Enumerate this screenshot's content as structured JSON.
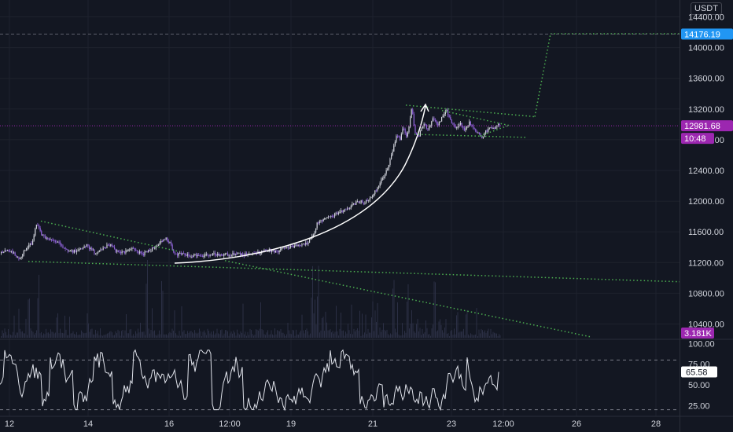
{
  "currency": "USDT",
  "chart_data": [
    {
      "type": "candlestick",
      "title": "",
      "x_ticks": [
        "12",
        "14",
        "16",
        "12:00",
        "19",
        "21",
        "23",
        "12:00",
        "26",
        "28"
      ],
      "y_ticks": [
        "10400.00",
        "10800.00",
        "11200.00",
        "11600.00",
        "12000.00",
        "12400.00",
        "12800.00",
        "13200.00",
        "13600.00",
        "14000.00",
        "14400.00"
      ],
      "ylim": [
        10200,
        14620
      ],
      "close_path": [
        [
          0,
          11320
        ],
        [
          8,
          11350
        ],
        [
          16,
          11330
        ],
        [
          25,
          11250
        ],
        [
          32,
          11380
        ],
        [
          40,
          11450
        ],
        [
          46,
          11700
        ],
        [
          52,
          11560
        ],
        [
          60,
          11500
        ],
        [
          70,
          11480
        ],
        [
          80,
          11400
        ],
        [
          90,
          11340
        ],
        [
          100,
          11360
        ],
        [
          110,
          11420
        ],
        [
          120,
          11330
        ],
        [
          130,
          11380
        ],
        [
          140,
          11440
        ],
        [
          150,
          11320
        ],
        [
          160,
          11350
        ],
        [
          170,
          11380
        ],
        [
          180,
          11300
        ],
        [
          190,
          11360
        ],
        [
          200,
          11420
        ],
        [
          208,
          11520
        ],
        [
          214,
          11480
        ],
        [
          222,
          11300
        ],
        [
          230,
          11320
        ],
        [
          240,
          11280
        ],
        [
          250,
          11300
        ],
        [
          260,
          11290
        ],
        [
          270,
          11310
        ],
        [
          280,
          11300
        ],
        [
          290,
          11300
        ],
        [
          300,
          11320
        ],
        [
          310,
          11300
        ],
        [
          320,
          11320
        ],
        [
          330,
          11330
        ],
        [
          340,
          11360
        ],
        [
          350,
          11340
        ],
        [
          360,
          11380
        ],
        [
          370,
          11400
        ],
        [
          380,
          11420
        ],
        [
          390,
          11460
        ],
        [
          398,
          11560
        ],
        [
          402,
          11700
        ],
        [
          410,
          11760
        ],
        [
          420,
          11800
        ],
        [
          430,
          11850
        ],
        [
          440,
          11900
        ],
        [
          448,
          11950
        ],
        [
          456,
          12000
        ],
        [
          462,
          11980
        ],
        [
          470,
          12040
        ],
        [
          478,
          12150
        ],
        [
          484,
          12260
        ],
        [
          490,
          12380
        ],
        [
          496,
          12550
        ],
        [
          500,
          12700
        ],
        [
          504,
          12860
        ],
        [
          508,
          12800
        ],
        [
          512,
          12950
        ],
        [
          516,
          12850
        ],
        [
          520,
          12980
        ],
        [
          523,
          13240
        ],
        [
          527,
          12900
        ],
        [
          532,
          12850
        ],
        [
          538,
          13000
        ],
        [
          544,
          12940
        ],
        [
          550,
          13080
        ],
        [
          556,
          12980
        ],
        [
          562,
          13100
        ],
        [
          567,
          13180
        ],
        [
          572,
          13060
        ],
        [
          578,
          12950
        ],
        [
          584,
          13020
        ],
        [
          590,
          12920
        ],
        [
          596,
          13030
        ],
        [
          602,
          12960
        ],
        [
          608,
          12870
        ],
        [
          612,
          12820
        ],
        [
          616,
          12900
        ],
        [
          622,
          12950
        ],
        [
          628,
          12940
        ],
        [
          634,
          13000
        ]
      ],
      "current_price": "12981.68",
      "countdown": "10:48",
      "projection_target": "14176.19",
      "volume_panel": {
        "last_value": "3.181K"
      },
      "oscillator_panel": {
        "y_ticks": [
          "25.00",
          "50.00",
          "75.00",
          "100.00"
        ],
        "ylim": [
          12,
          105
        ],
        "bands": [
          80,
          20
        ],
        "last_value": "65.58"
      }
    }
  ]
}
